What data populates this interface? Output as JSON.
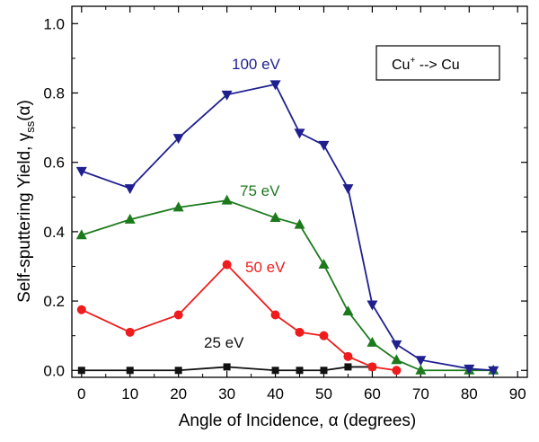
{
  "chart_data": {
    "type": "line",
    "title": "",
    "xlabel": "Angle of Incidence, α (degrees)",
    "ylabel": "Self-sputtering Yield, γss(α)",
    "ylabel_parts": {
      "main": "Self-sputtering Yield, γ",
      "sub": "ss",
      "tail": "(α)"
    },
    "xlim": [
      -2,
      92
    ],
    "ylim": [
      -0.02,
      1.05
    ],
    "xticks": [
      0,
      10,
      20,
      30,
      40,
      50,
      60,
      70,
      80,
      90
    ],
    "yticks": [
      0.0,
      0.2,
      0.4,
      0.6,
      0.8,
      1.0
    ],
    "ytick_labels": [
      "0.0",
      "0.2",
      "0.4",
      "0.6",
      "0.8",
      "1.0"
    ],
    "grid": false,
    "annotation_box": {
      "text_main": "Cu",
      "text_sup": "+",
      "text_tail": " --> Cu"
    },
    "series": [
      {
        "name": "100 eV",
        "color": "#1f1f8f",
        "marker": "triangle-down",
        "x": [
          0,
          10,
          20,
          30,
          40,
          45,
          50,
          55,
          60,
          65,
          70,
          80,
          85
        ],
        "y": [
          0.575,
          0.525,
          0.67,
          0.795,
          0.825,
          0.685,
          0.65,
          0.525,
          0.19,
          0.075,
          0.03,
          0.005,
          0.0
        ]
      },
      {
        "name": "75 eV",
        "color": "#1c7a1c",
        "marker": "triangle-up",
        "x": [
          0,
          10,
          20,
          30,
          40,
          45,
          50,
          55,
          60,
          65,
          70,
          80,
          85
        ],
        "y": [
          0.39,
          0.435,
          0.47,
          0.49,
          0.44,
          0.42,
          0.305,
          0.17,
          0.08,
          0.03,
          0.0,
          0.0,
          0.0
        ]
      },
      {
        "name": "50 eV",
        "color": "#ee1c1c",
        "marker": "circle",
        "x": [
          0,
          10,
          20,
          30,
          40,
          45,
          50,
          55,
          60,
          65
        ],
        "y": [
          0.175,
          0.11,
          0.16,
          0.305,
          0.16,
          0.11,
          0.1,
          0.04,
          0.01,
          0.0
        ]
      },
      {
        "name": "25 eV",
        "color": "#111111",
        "marker": "square",
        "x": [
          0,
          10,
          20,
          30,
          40,
          45,
          50,
          55,
          60
        ],
        "y": [
          0.0,
          0.0,
          0.0,
          0.01,
          0.0,
          0.0,
          0.0,
          0.01,
          0.01
        ]
      }
    ]
  }
}
